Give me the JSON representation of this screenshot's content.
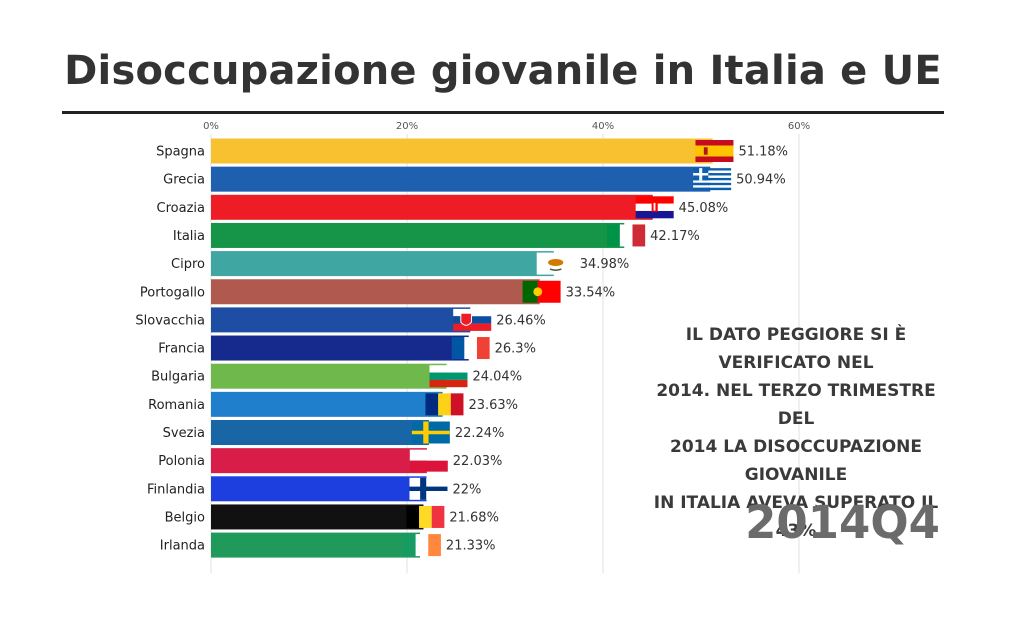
{
  "title": "Disoccupazione giovanile in Italia e UE",
  "note_lines": [
    "IL DATO PEGGIORE SI È VERIFICATO NEL",
    "2014. NEL TERZO TRIMESTRE DEL",
    "2014 LA DISOCCUPAZIONE GIOVANILE",
    "IN ITALIA AVEVA SUPERATO IL 43%"
  ],
  "period": "2014Q4",
  "chart_data": {
    "type": "bar",
    "orientation": "horizontal",
    "title": "Disoccupazione giovanile in Italia e UE",
    "xlabel": "",
    "ylabel": "",
    "xlim": [
      0,
      60
    ],
    "x_ticks": [
      0,
      20,
      40,
      60
    ],
    "x_tick_labels": [
      "0%",
      "20%",
      "40%",
      "60%"
    ],
    "grid": true,
    "categories": [
      "Spagna",
      "Grecia",
      "Croazia",
      "Italia",
      "Cipro",
      "Portogallo",
      "Slovacchia",
      "Francia",
      "Bulgaria",
      "Romania",
      "Svezia",
      "Polonia",
      "Finlandia",
      "Belgio",
      "Irlanda"
    ],
    "values": [
      51.18,
      50.94,
      45.08,
      42.17,
      34.98,
      33.54,
      26.46,
      26.3,
      24.04,
      23.63,
      22.24,
      22.03,
      22,
      21.68,
      21.33
    ],
    "value_labels": [
      "51.18%",
      "50.94%",
      "45.08%",
      "42.17%",
      "34.98%",
      "33.54%",
      "26.46%",
      "26.3%",
      "24.04%",
      "23.63%",
      "22.24%",
      "22.03%",
      "22%",
      "21.68%",
      "21.33%"
    ],
    "colors": [
      "#f7c12f",
      "#1f5fb0",
      "#ee1c25",
      "#169447",
      "#3fa6a1",
      "#b05a4f",
      "#1d4ea3",
      "#152a8c",
      "#6fb84c",
      "#1f7fcc",
      "#1866a6",
      "#d81e48",
      "#1e3fe0",
      "#111111",
      "#1f9a5a"
    ],
    "flags": [
      "spain",
      "greece",
      "croatia",
      "italy",
      "cyprus",
      "portugal",
      "slovakia",
      "france",
      "bulgaria",
      "romania",
      "sweden",
      "poland",
      "finland",
      "belgium",
      "ireland"
    ]
  }
}
